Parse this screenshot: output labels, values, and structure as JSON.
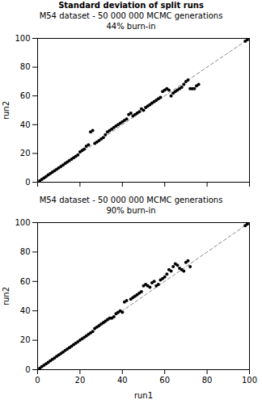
{
  "chart_data": [
    {
      "type": "scatter",
      "title": "Standard deviation of split runs",
      "subtitle": [
        "M54 dataset - 50 000 000 MCMC generations",
        "44% burn-in"
      ],
      "ylabel": "run2",
      "x": [
        1,
        2,
        3,
        4,
        5,
        6,
        7,
        8,
        9,
        10,
        11,
        12,
        13,
        14,
        15,
        16,
        17,
        18,
        19,
        20,
        21,
        22,
        23,
        24,
        25,
        26,
        27,
        28,
        29,
        30,
        31,
        32,
        33,
        34,
        35,
        36,
        37,
        38,
        39,
        40,
        41,
        42,
        43,
        44,
        45,
        46,
        47,
        48,
        49,
        50,
        51,
        52,
        53,
        54,
        55,
        56,
        57,
        58,
        59,
        60,
        61,
        62,
        63,
        64,
        65,
        66,
        67,
        68,
        69,
        70,
        71,
        72,
        73,
        74,
        75,
        76,
        98,
        99
      ],
      "values": [
        1,
        2,
        3,
        4,
        5,
        6,
        7,
        8,
        9,
        10,
        11,
        12,
        13,
        14,
        15,
        16,
        17,
        18,
        19,
        21,
        22,
        23,
        25,
        26,
        35,
        36,
        27,
        28,
        29,
        30,
        31,
        33,
        35,
        36,
        37,
        38,
        39,
        40,
        41,
        42,
        43,
        44,
        47,
        48,
        46,
        47,
        48,
        49,
        51,
        50,
        52,
        53,
        54,
        55,
        56,
        57,
        58,
        59,
        63,
        64,
        65,
        64,
        60,
        62,
        63,
        64,
        65,
        66,
        68,
        70,
        71,
        65,
        65,
        65,
        67,
        68,
        98,
        99
      ],
      "color": "#000000",
      "marker": "circle",
      "diagonal": {
        "x": [
          0,
          100
        ],
        "y": [
          0,
          100
        ],
        "color": "#888888",
        "line_style": "dashed"
      },
      "xlim": [
        0,
        100
      ],
      "ylim": [
        0,
        100
      ],
      "xticks": [
        0,
        20,
        40,
        60,
        80,
        100
      ],
      "yticks": [
        0,
        20,
        40,
        60,
        80,
        100
      ],
      "grid": false,
      "tick_labels": "y"
    },
    {
      "type": "scatter",
      "subtitle": [
        "M54 dataset - 50 000 000 MCMC generations",
        "90% burn-in"
      ],
      "xlabel": "run1",
      "ylabel": "run2",
      "x": [
        1,
        2,
        3,
        4,
        5,
        6,
        7,
        8,
        9,
        10,
        11,
        12,
        13,
        14,
        15,
        16,
        17,
        18,
        19,
        20,
        21,
        22,
        23,
        24,
        25,
        26,
        27,
        28,
        29,
        30,
        31,
        32,
        33,
        34,
        35,
        36,
        37,
        38,
        39,
        40,
        41,
        42,
        44,
        45,
        46,
        47,
        48,
        49,
        50,
        51,
        52,
        53,
        54,
        55,
        56,
        57,
        58,
        59,
        60,
        61,
        62,
        63,
        64,
        65,
        66,
        67,
        68,
        69,
        70,
        71,
        72,
        98,
        99
      ],
      "values": [
        1,
        2,
        3,
        4,
        5,
        6,
        7,
        8,
        9,
        10,
        11,
        12,
        13,
        14,
        15,
        16,
        17,
        18,
        19,
        20,
        21,
        22,
        23,
        24,
        25,
        26,
        28,
        29,
        30,
        31,
        32,
        33,
        34,
        35,
        35,
        36,
        38,
        39,
        40,
        39,
        46,
        47,
        48,
        49,
        50,
        51,
        52,
        53,
        57,
        58,
        57,
        56,
        59,
        60,
        57,
        58,
        61,
        62,
        63,
        65,
        68,
        67,
        70,
        72,
        71,
        69,
        68,
        67,
        73,
        74,
        70,
        98,
        99
      ],
      "color": "#000000",
      "marker": "circle",
      "diagonal": {
        "x": [
          0,
          100
        ],
        "y": [
          0,
          100
        ],
        "color": "#888888",
        "line_style": "dashed"
      },
      "xlim": [
        0,
        100
      ],
      "ylim": [
        0,
        100
      ],
      "xticks": [
        0,
        20,
        40,
        60,
        80,
        100
      ],
      "yticks": [
        0,
        20,
        40,
        60,
        80,
        100
      ],
      "grid": false
    }
  ]
}
